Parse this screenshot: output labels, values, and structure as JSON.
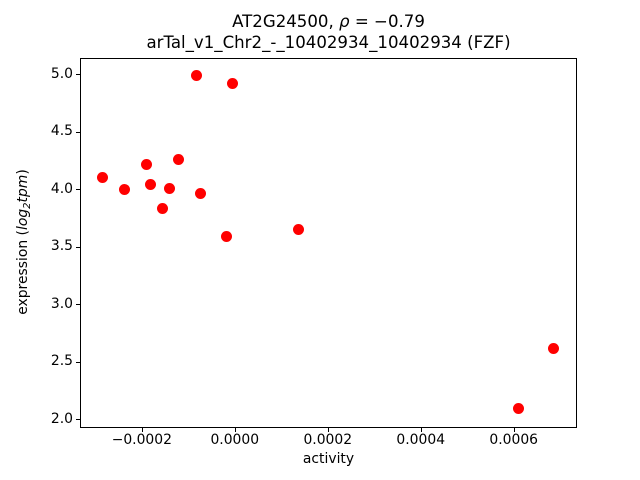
{
  "figure": {
    "title_line1": {
      "gene": "AT2G24500",
      "separator": ", ",
      "rho_symbol": "ρ",
      "rho_value": " = −0.79"
    },
    "title_line2": "arTal_v1_Chr2_-_10402934_10402934 (FZF)",
    "xlabel": "activity",
    "ylabel_parts": {
      "prefix": "expression (",
      "log": "log",
      "subscript": "2",
      "tpm": "tpm",
      "suffix": ")"
    }
  },
  "chart_data": {
    "type": "scatter",
    "title": "AT2G24500, ρ = −0.79",
    "subtitle": "arTal_v1_Chr2_-_10402934_10402934 (FZF)",
    "xlabel": "activity",
    "ylabel": "expression (log2tpm)",
    "marker_color": "#ff0000",
    "grid": false,
    "legend": false,
    "xlim": [
      -0.000333,
      0.000734
    ],
    "ylim": [
      1.933,
      5.142
    ],
    "x_ticks": [
      {
        "value": -0.0002,
        "label": "−0.0002"
      },
      {
        "value": 0.0,
        "label": "0.0000"
      },
      {
        "value": 0.0002,
        "label": "0.0002"
      },
      {
        "value": 0.0004,
        "label": "0.0004"
      },
      {
        "value": 0.0006,
        "label": "0.0006"
      }
    ],
    "y_ticks": [
      {
        "value": 2.0,
        "label": "2.0"
      },
      {
        "value": 2.5,
        "label": "2.5"
      },
      {
        "value": 3.0,
        "label": "3.0"
      },
      {
        "value": 3.5,
        "label": "3.5"
      },
      {
        "value": 4.0,
        "label": "4.0"
      },
      {
        "value": 4.5,
        "label": "4.5"
      },
      {
        "value": 5.0,
        "label": "5.0"
      }
    ],
    "points": [
      {
        "x": -0.000284,
        "y": 4.1
      },
      {
        "x": -0.000238,
        "y": 4.0
      },
      {
        "x": -0.000189,
        "y": 4.22
      },
      {
        "x": -0.000181,
        "y": 4.04
      },
      {
        "x": -0.000156,
        "y": 3.83
      },
      {
        "x": -0.00014,
        "y": 4.01
      },
      {
        "x": -0.000122,
        "y": 4.26
      },
      {
        "x": -8.2e-05,
        "y": 4.99
      },
      {
        "x": -7.3e-05,
        "y": 3.96
      },
      {
        "x": -1.8e-05,
        "y": 3.59
      },
      {
        "x": -4e-06,
        "y": 4.92
      },
      {
        "x": 0.000136,
        "y": 3.65
      },
      {
        "x": 0.00061,
        "y": 2.09
      },
      {
        "x": 0.000685,
        "y": 2.62
      }
    ]
  }
}
